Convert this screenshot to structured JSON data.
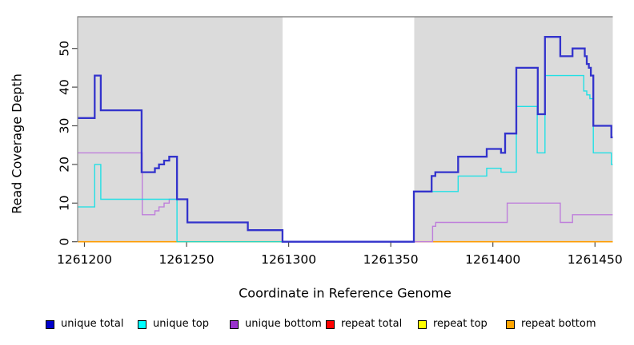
{
  "chart_data": {
    "type": "line",
    "subtype": "step",
    "title": "",
    "xlabel": "Coordinate in Reference Genome",
    "ylabel": "Read Coverage Depth",
    "xlim": [
      1261196.7,
      1261458.7
    ],
    "ylim": [
      0,
      58
    ],
    "grid": false,
    "legend_position": "bottom",
    "x_ticks": [
      {
        "value": 1261200,
        "label": "1261200"
      },
      {
        "value": 1261250,
        "label": "1261250"
      },
      {
        "value": 1261300,
        "label": "1261300"
      },
      {
        "value": 1261350,
        "label": "1261350"
      },
      {
        "value": 1261400,
        "label": "1261400"
      },
      {
        "value": 1261450,
        "label": "1261450"
      }
    ],
    "y_ticks": [
      {
        "value": 0,
        "label": "0"
      },
      {
        "value": 10,
        "label": "10"
      },
      {
        "value": 20,
        "label": "20"
      },
      {
        "value": 30,
        "label": "30"
      },
      {
        "value": 40,
        "label": "40"
      },
      {
        "value": 50,
        "label": "50"
      }
    ],
    "background": {
      "plot_bg": "#DBDBDB",
      "border_color": "#8A8A8A",
      "zero_coverage_gap": {
        "x_start": 1261297,
        "x_end": 1261361.5,
        "color": "#FFFFFF"
      }
    },
    "series": [
      {
        "name": "unique total",
        "slug": "unique-total",
        "line_color": "#3333CC",
        "legend_color": "#0000CC",
        "line_width": 2.3,
        "z": 6,
        "points": [
          [
            1261196.7,
            32
          ],
          [
            1261205,
            43
          ],
          [
            1261208,
            34
          ],
          [
            1261228,
            18
          ],
          [
            1261234.5,
            19
          ],
          [
            1261236.5,
            20
          ],
          [
            1261239,
            21
          ],
          [
            1261241.5,
            22
          ],
          [
            1261245.3,
            11
          ],
          [
            1261250.4,
            5
          ],
          [
            1261280,
            3
          ],
          [
            1261297,
            0
          ],
          [
            1261361.3,
            13
          ],
          [
            1261370,
            17
          ],
          [
            1261371.8,
            18
          ],
          [
            1261383,
            22
          ],
          [
            1261397,
            24
          ],
          [
            1261404,
            23
          ],
          [
            1261406,
            28
          ],
          [
            1261411.5,
            45
          ],
          [
            1261422,
            33
          ],
          [
            1261425.5,
            53
          ],
          [
            1261433,
            48
          ],
          [
            1261439,
            50
          ],
          [
            1261445,
            48
          ],
          [
            1261446,
            46
          ],
          [
            1261447,
            45
          ],
          [
            1261448,
            43
          ],
          [
            1261449.2,
            30
          ],
          [
            1261458,
            27
          ],
          [
            1261458.7,
            27
          ]
        ]
      },
      {
        "name": "unique top",
        "slug": "unique-top",
        "line_color": "#00E0E6",
        "legend_color": "#00FFFF",
        "line_width": 1.4,
        "z": 5,
        "opacity": 0.85,
        "points": [
          [
            1261196.7,
            9
          ],
          [
            1261205,
            20
          ],
          [
            1261208,
            11
          ],
          [
            1261245.3,
            0
          ],
          [
            1261361.3,
            13
          ],
          [
            1261383,
            17
          ],
          [
            1261397,
            19
          ],
          [
            1261404,
            18
          ],
          [
            1261411.5,
            35
          ],
          [
            1261421.7,
            23
          ],
          [
            1261425.5,
            43
          ],
          [
            1261444.5,
            39
          ],
          [
            1261446,
            38
          ],
          [
            1261447.5,
            37
          ],
          [
            1261449.2,
            23
          ],
          [
            1261458,
            20
          ],
          [
            1261458.7,
            20
          ]
        ]
      },
      {
        "name": "unique bottom",
        "slug": "unique-bottom",
        "line_color": "#BE7EDB",
        "legend_color": "#9932CC",
        "line_width": 1.4,
        "z": 4,
        "points": [
          [
            1261196.7,
            23
          ],
          [
            1261228.3,
            7
          ],
          [
            1261234.5,
            8
          ],
          [
            1261236.5,
            9
          ],
          [
            1261239,
            10
          ],
          [
            1261241.5,
            11
          ],
          [
            1261250.4,
            5
          ],
          [
            1261280,
            3
          ],
          [
            1261297,
            0
          ],
          [
            1261370.5,
            4
          ],
          [
            1261372,
            5
          ],
          [
            1261407,
            10
          ],
          [
            1261433,
            5
          ],
          [
            1261439,
            7
          ],
          [
            1261458.7,
            7
          ]
        ]
      },
      {
        "name": "repeat total",
        "slug": "repeat-total",
        "line_color": "#DD0000",
        "legend_color": "#FF0000",
        "line_width": 1.4,
        "z": 1,
        "points": [
          [
            1261196.7,
            0
          ],
          [
            1261458.7,
            0
          ]
        ]
      },
      {
        "name": "repeat top",
        "slug": "repeat-top",
        "line_color": "#EEEE00",
        "legend_color": "#FFFF00",
        "line_width": 1.4,
        "z": 2,
        "points": [
          [
            1261196.7,
            0
          ],
          [
            1261458.7,
            0
          ]
        ]
      },
      {
        "name": "repeat bottom",
        "slug": "repeat-bottom",
        "line_color": "#FF9D00",
        "legend_color": "#FFA500",
        "line_width": 1.7,
        "z": 3,
        "points": [
          [
            1261196.7,
            0
          ],
          [
            1261458.7,
            0
          ]
        ]
      }
    ]
  }
}
